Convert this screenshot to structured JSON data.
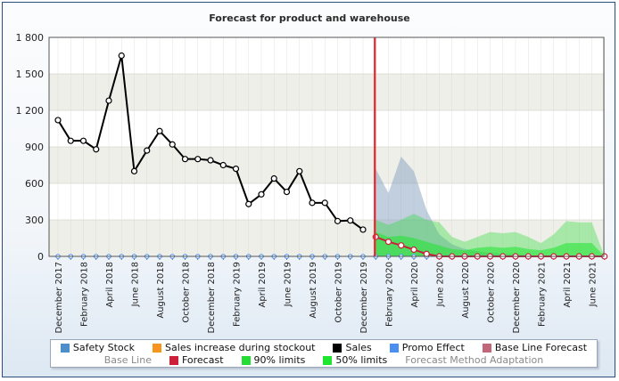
{
  "chart_data": {
    "type": "line",
    "title": "Forecast for product and warehouse",
    "ylim": [
      0,
      1800
    ],
    "yticks": [
      "0",
      "300",
      "600",
      "900",
      "1 200",
      "1 500",
      "1 800"
    ],
    "ytick_values": [
      0,
      300,
      600,
      900,
      1200,
      1500,
      1800
    ],
    "x_month_count": 44,
    "xtick_labels": [
      "December 2017",
      "February 2018",
      "April 2018",
      "June 2018",
      "August 2018",
      "October 2018",
      "December 2018",
      "February 2019",
      "April 2019",
      "June 2019",
      "August 2019",
      "October 2019",
      "December 2019",
      "February 2020",
      "April 2020",
      "June 2020",
      "August 2020",
      "October 2020",
      "December 2020",
      "February 2021",
      "April 2021",
      "June 2021"
    ],
    "forecast_start_index": 25,
    "series": [
      {
        "name": "Sales",
        "color": "#000000",
        "values": [
          1120,
          950,
          950,
          880,
          1280,
          1650,
          700,
          870,
          1030,
          920,
          800,
          800,
          790,
          750,
          720,
          430,
          510,
          640,
          530,
          700,
          440,
          440,
          290,
          295,
          220
        ]
      },
      {
        "name": "Forecast",
        "color": "#cc1f3a",
        "start_index": 25,
        "values": [
          160,
          120,
          90,
          55,
          20,
          0,
          0,
          0,
          0,
          0,
          0,
          0,
          0,
          0,
          0,
          0,
          0,
          0,
          0
        ]
      },
      {
        "name": "90% limits",
        "color": "#23dc34",
        "start_index": 25,
        "lower": [
          0,
          0,
          0,
          0,
          0,
          0,
          0,
          0,
          0,
          0,
          0,
          0,
          0,
          0,
          0,
          0,
          0,
          0,
          0
        ],
        "upper": [
          300,
          260,
          300,
          350,
          300,
          280,
          160,
          120,
          160,
          200,
          190,
          200,
          160,
          110,
          180,
          290,
          280,
          280,
          0
        ]
      },
      {
        "name": "50% limits",
        "color": "#1ee52e",
        "start_index": 25,
        "lower": [
          0,
          0,
          0,
          0,
          0,
          0,
          0,
          0,
          0,
          0,
          0,
          0,
          0,
          0,
          0,
          0,
          0,
          0,
          0
        ],
        "upper": [
          200,
          160,
          170,
          150,
          120,
          90,
          60,
          50,
          70,
          80,
          70,
          80,
          60,
          50,
          70,
          110,
          110,
          110,
          0
        ]
      },
      {
        "name": "Forecast Method Adaptation",
        "color": "#8ea8c4",
        "start_index": 25,
        "values": [
          720,
          520,
          820,
          700,
          380,
          180,
          100,
          60,
          40,
          30,
          20,
          20,
          10,
          0,
          0,
          0,
          0,
          0,
          0
        ]
      }
    ],
    "grid": true,
    "legend_position": "bottom"
  },
  "legend": [
    {
      "label": "Safety Stock",
      "color": "#4c8fc9"
    },
    {
      "label": "Sales increase during stockout",
      "color": "#f7941d"
    },
    {
      "label": "Sales",
      "color": "#000000"
    },
    {
      "label": "Promo Effect",
      "color": "#4a8ff0"
    },
    {
      "label": "Base Line Forecast",
      "color": "#c2667a"
    },
    {
      "label": "Base Line",
      "color": ""
    },
    {
      "label": "Forecast",
      "color": "#cc1f3a"
    },
    {
      "label": "90% limits",
      "color": "#23dc34"
    },
    {
      "label": "50% limits",
      "color": "#1ee52e"
    },
    {
      "label": "Forecast Method Adaptation",
      "color": ""
    }
  ]
}
